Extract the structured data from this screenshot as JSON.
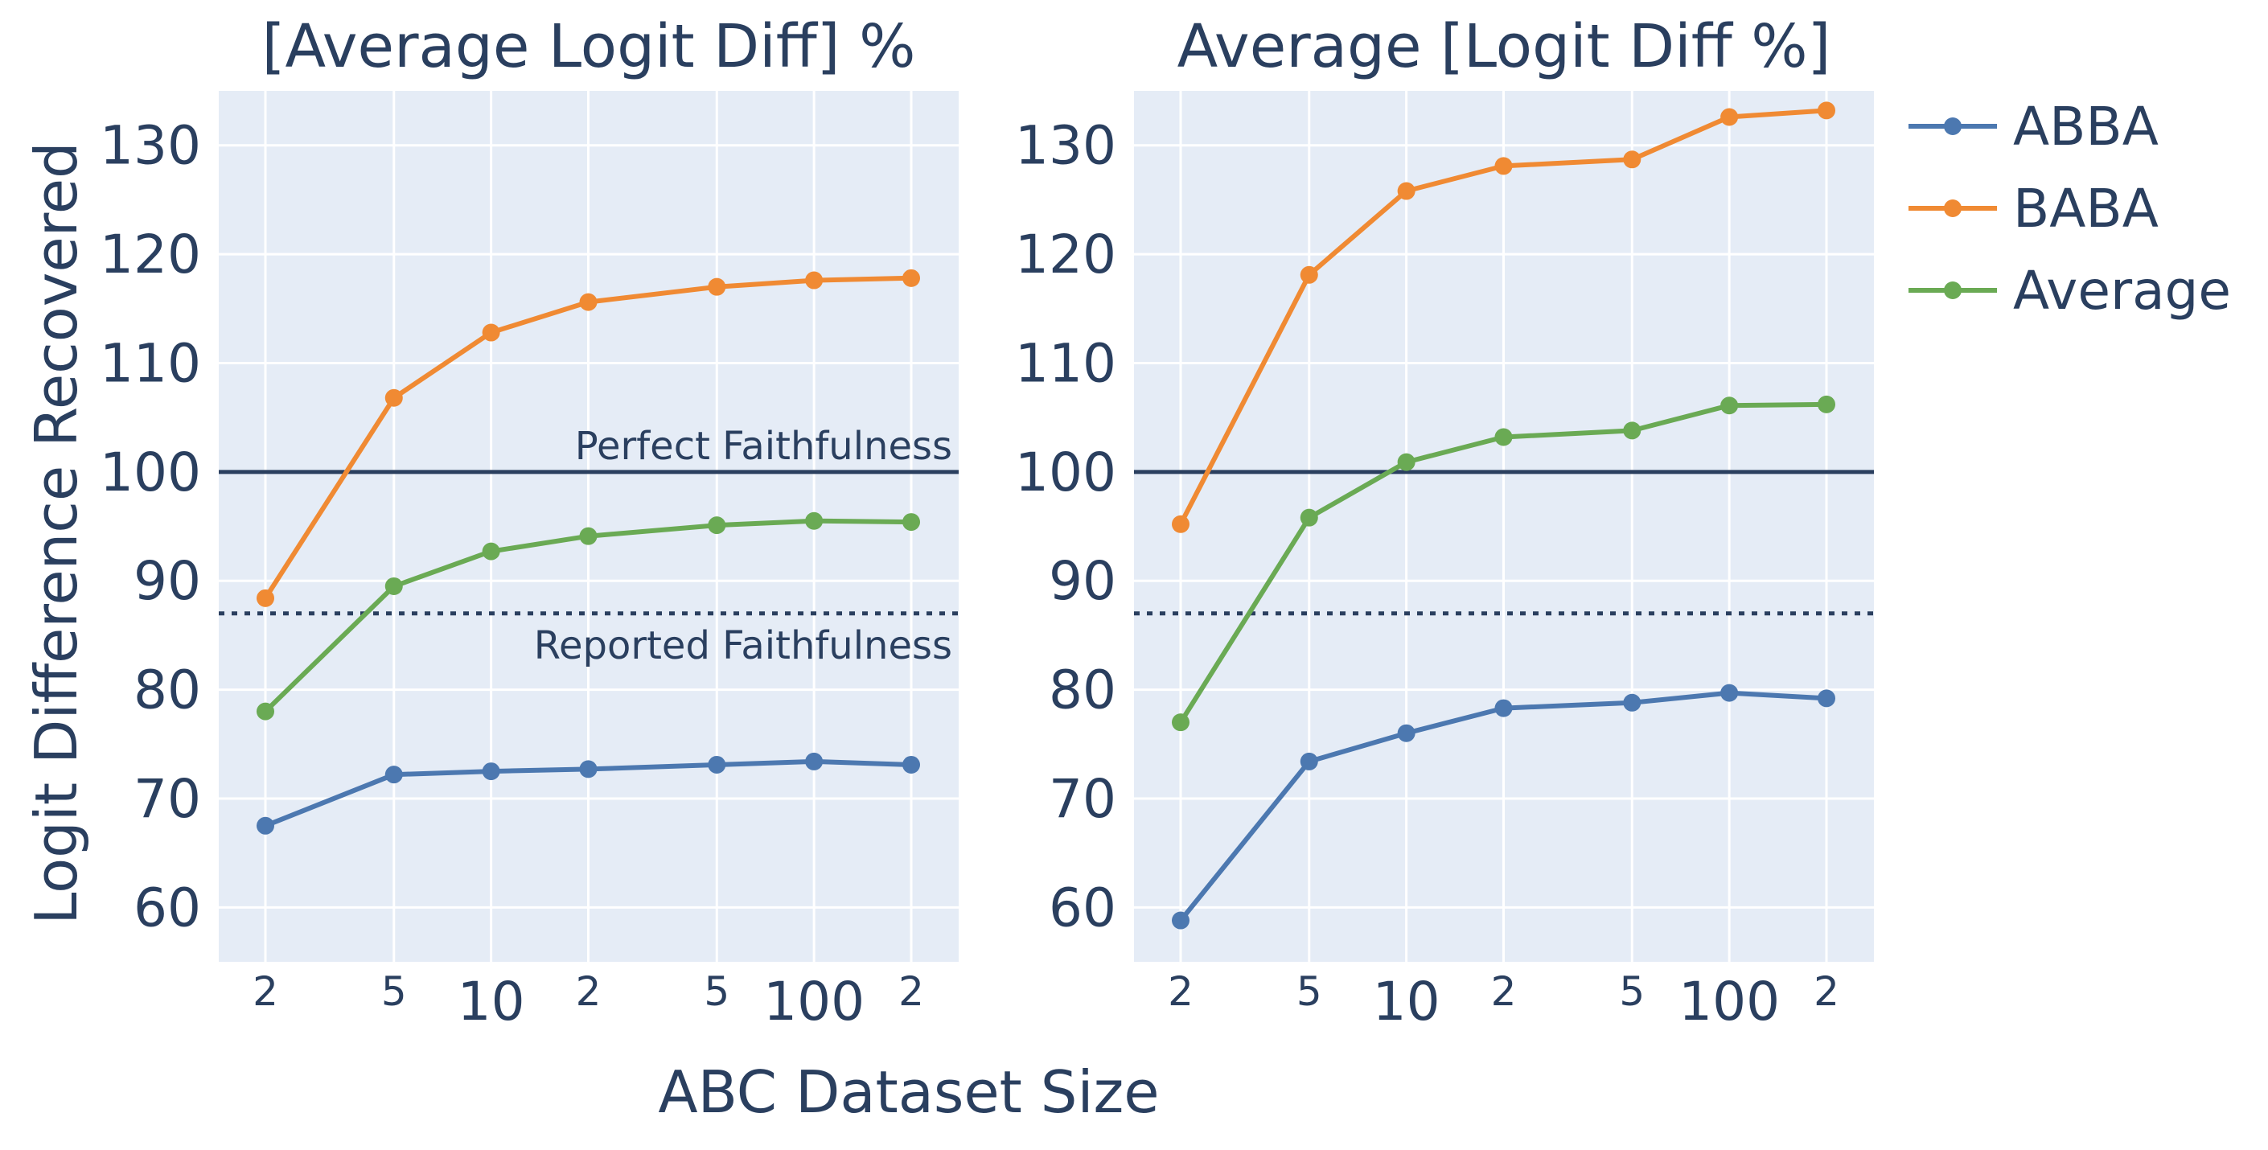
{
  "chart_data": {
    "type": "line",
    "x": [
      2,
      5,
      10,
      20,
      50,
      100,
      200
    ],
    "x_scale": "log",
    "x_tick_labels": [
      "2",
      "5",
      "10",
      "2",
      "5",
      "100",
      "2"
    ],
    "xlabel": "ABC Dataset Size",
    "ylabel": "Logit Difference Recovered",
    "ylim": [
      55,
      135
    ],
    "y_ticks": [
      60,
      70,
      80,
      90,
      100,
      110,
      120,
      130
    ],
    "grid": true,
    "legend_position": "right",
    "colors": {
      "ABBA": "#4c78b0",
      "BABA": "#f08a33",
      "Average": "#6aaa54",
      "reference": "#2a3f5f",
      "plot_bg": "#e5ecf6"
    },
    "legend": [
      "ABBA",
      "BABA",
      "Average"
    ],
    "panels": [
      {
        "title": "[Average Logit Diff] %",
        "reference_lines": [
          {
            "y": 100,
            "style": "solid",
            "label": "Perfect Faithfulness"
          },
          {
            "y": 87,
            "style": "dotted",
            "label": "Reported Faithfulness"
          }
        ],
        "series": [
          {
            "name": "ABBA",
            "values": [
              67.5,
              72.2,
              72.5,
              72.7,
              73.1,
              73.4,
              73.1
            ]
          },
          {
            "name": "BABA",
            "values": [
              88.4,
              106.8,
              112.8,
              115.6,
              117.0,
              117.6,
              117.8
            ]
          },
          {
            "name": "Average",
            "values": [
              78.0,
              89.5,
              92.7,
              94.1,
              95.1,
              95.5,
              95.4
            ]
          }
        ]
      },
      {
        "title": "Average [Logit Diff %]",
        "reference_lines": [
          {
            "y": 100,
            "style": "solid",
            "label": ""
          },
          {
            "y": 87,
            "style": "dotted",
            "label": ""
          }
        ],
        "series": [
          {
            "name": "ABBA",
            "values": [
              58.8,
              73.4,
              76.0,
              78.3,
              78.8,
              79.7,
              79.2
            ]
          },
          {
            "name": "BABA",
            "values": [
              95.2,
              118.1,
              125.8,
              128.1,
              128.7,
              132.6,
              133.2
            ]
          },
          {
            "name": "Average",
            "values": [
              77.0,
              95.8,
              100.9,
              103.2,
              103.8,
              106.1,
              106.2
            ]
          }
        ]
      }
    ]
  }
}
